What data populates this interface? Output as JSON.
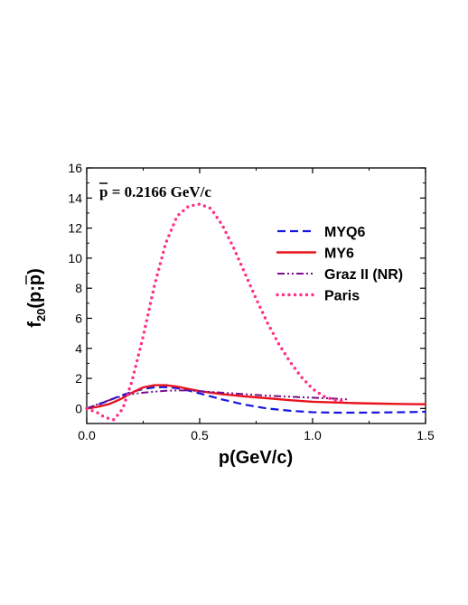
{
  "chart_data": {
    "type": "line",
    "xlabel": "p(GeV/c)",
    "ylabel": "f",
    "ylabel_sub": "20",
    "ylabel_args": "(p;p)",
    "annotation": "p = 0.2166 GeV/c",
    "xlim": [
      0.0,
      1.5
    ],
    "ylim": [
      -1,
      16
    ],
    "xticks": [
      "0.0",
      "0.5",
      "1.0",
      "1.5"
    ],
    "yticks": [
      "0",
      "2",
      "4",
      "6",
      "8",
      "10",
      "12",
      "14",
      "16"
    ],
    "legend_position": "upper-right",
    "grid": false,
    "series": [
      {
        "name": "MYQ6",
        "color": "#1515e0",
        "dash": "dashed",
        "x": [
          0.0,
          0.05,
          0.1,
          0.15,
          0.2,
          0.25,
          0.3,
          0.35,
          0.4,
          0.45,
          0.5,
          0.6,
          0.7,
          0.8,
          0.9,
          1.0,
          1.1,
          1.2,
          1.3,
          1.4,
          1.5
        ],
        "y": [
          0.0,
          0.25,
          0.55,
          0.85,
          1.1,
          1.3,
          1.4,
          1.42,
          1.35,
          1.2,
          1.0,
          0.6,
          0.25,
          0.0,
          -0.15,
          -0.25,
          -0.28,
          -0.28,
          -0.27,
          -0.25,
          -0.22
        ]
      },
      {
        "name": "MY6",
        "color": "#e8141e",
        "dash": "solid",
        "x": [
          0.0,
          0.05,
          0.1,
          0.15,
          0.2,
          0.25,
          0.3,
          0.35,
          0.4,
          0.45,
          0.5,
          0.6,
          0.7,
          0.8,
          0.9,
          1.0,
          1.1,
          1.2,
          1.3,
          1.4,
          1.5
        ],
        "y": [
          0.0,
          0.12,
          0.3,
          0.62,
          1.05,
          1.4,
          1.55,
          1.55,
          1.45,
          1.3,
          1.15,
          0.95,
          0.8,
          0.68,
          0.55,
          0.45,
          0.4,
          0.35,
          0.32,
          0.3,
          0.28
        ]
      },
      {
        "name": "Graz II (NR)",
        "color": "#7a0f8c",
        "dash": "dashdotdot",
        "x": [
          0.0,
          0.05,
          0.1,
          0.15,
          0.2,
          0.25,
          0.3,
          0.35,
          0.4,
          0.45,
          0.5,
          0.6,
          0.7,
          0.8,
          0.9,
          1.0,
          1.1,
          1.16
        ],
        "y": [
          0.0,
          0.3,
          0.55,
          0.8,
          0.95,
          1.05,
          1.12,
          1.18,
          1.2,
          1.2,
          1.15,
          1.05,
          0.95,
          0.85,
          0.78,
          0.72,
          0.65,
          0.6
        ]
      },
      {
        "name": "Paris",
        "color": "#ff2d86",
        "dash": "dotted",
        "x": [
          0.0,
          0.05,
          0.08,
          0.12,
          0.16,
          0.2,
          0.25,
          0.3,
          0.35,
          0.4,
          0.45,
          0.5,
          0.55,
          0.6,
          0.65,
          0.7,
          0.75,
          0.8,
          0.85,
          0.9,
          0.95,
          1.0,
          1.05,
          1.1,
          1.15
        ],
        "y": [
          0.0,
          -0.3,
          -0.6,
          -0.75,
          0.0,
          1.8,
          4.8,
          8.2,
          11.0,
          12.8,
          13.45,
          13.6,
          13.3,
          12.2,
          10.7,
          9.0,
          7.3,
          5.7,
          4.3,
          3.1,
          2.1,
          1.3,
          0.8,
          0.55,
          0.5
        ]
      }
    ]
  }
}
